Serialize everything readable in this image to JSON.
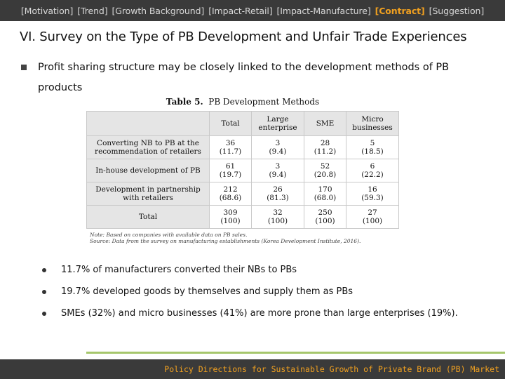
{
  "nav": {
    "items": [
      "[Motivation]",
      "[Trend]",
      "[Growth Background]",
      "[Impact-Retail]",
      "[Impact-Manufacture]",
      "[Contract]",
      "[Suggestion]"
    ],
    "active": "[Contract]"
  },
  "slide": {
    "title": "VI. Survey on the Type of PB Development and Unfair Trade Experiences",
    "main_bullet": "Profit sharing structure may be closely linked to the development methods of PB products"
  },
  "table": {
    "caption_prefix": "Table 5.",
    "caption_text": "PB Development Methods",
    "headers": [
      "",
      "Total",
      "Large enterprise",
      "SME",
      "Micro businesses"
    ],
    "rows": [
      {
        "label": "Converting NB to PB at the recommendation of retailers",
        "values": [
          "36\n(11.7)",
          "3\n(9.4)",
          "28\n(11.2)",
          "5\n(18.5)"
        ]
      },
      {
        "label": "In-house development of PB",
        "values": [
          "61\n(19.7)",
          "3\n(9.4)",
          "52\n(20.8)",
          "6\n(22.2)"
        ]
      },
      {
        "label": "Development in partnership with retailers",
        "values": [
          "212\n(68.6)",
          "26\n(81.3)",
          "170\n(68.0)",
          "16\n(59.3)"
        ]
      },
      {
        "label": "Total",
        "values": [
          "309\n(100)",
          "32\n(100)",
          "250\n(100)",
          "27\n(100)"
        ]
      }
    ],
    "note_line1": "Note: Based on companies with available data on PB sales.",
    "note_line2": "Source: Data from the survey on manufacturing establishments (Korea Development Institute, 2016)."
  },
  "points": [
    "11.7% of manufacturers converted their NBs to PBs",
    "19.7% developed goods by themselves and supply them as PBs",
    "SMEs (32%) and micro businesses (41%) are more prone than large enterprises (19%)."
  ],
  "footer": {
    "text": "Policy Directions for Sustainable Growth of Private Brand (PB) Market"
  },
  "colors": {
    "nav_bg": "#3a3a3a",
    "accent": "#f0a020",
    "divider": "#a6c76c"
  }
}
